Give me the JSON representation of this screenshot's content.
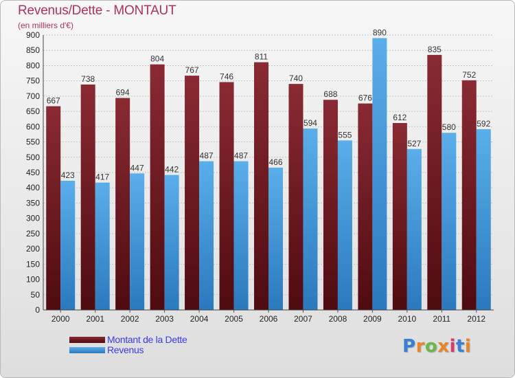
{
  "colors": {
    "dette": "#6e1a22",
    "revenus": "#3b91d8",
    "title": "#b0325a",
    "legend_text": "#3a3aee"
  },
  "header": {
    "title": "Revenus/Dette - MONTAUT",
    "subtitle": "(en milliers d'€)"
  },
  "legend": {
    "dette_label": "Montant de la Dette",
    "revenus_label": "Revenus"
  },
  "logo": {
    "text": "Proxiti"
  },
  "chart_data": {
    "type": "bar",
    "categories": [
      "2000",
      "2001",
      "2002",
      "2003",
      "2004",
      "2005",
      "2006",
      "2007",
      "2008",
      "2009",
      "2010",
      "2011",
      "2012"
    ],
    "series": [
      {
        "name": "Montant de la Dette",
        "values": [
          667,
          738,
          694,
          804,
          767,
          746,
          811,
          740,
          688,
          676,
          612,
          835,
          752
        ]
      },
      {
        "name": "Revenus",
        "values": [
          423,
          417,
          447,
          442,
          487,
          487,
          466,
          594,
          555,
          890,
          527,
          580,
          592
        ]
      }
    ],
    "title": "Revenus/Dette - MONTAUT",
    "ylabel": "(en milliers d'€)",
    "ylim": [
      0,
      900
    ],
    "ytick_step": 50,
    "grid": true,
    "legend_position": "bottom-left"
  }
}
